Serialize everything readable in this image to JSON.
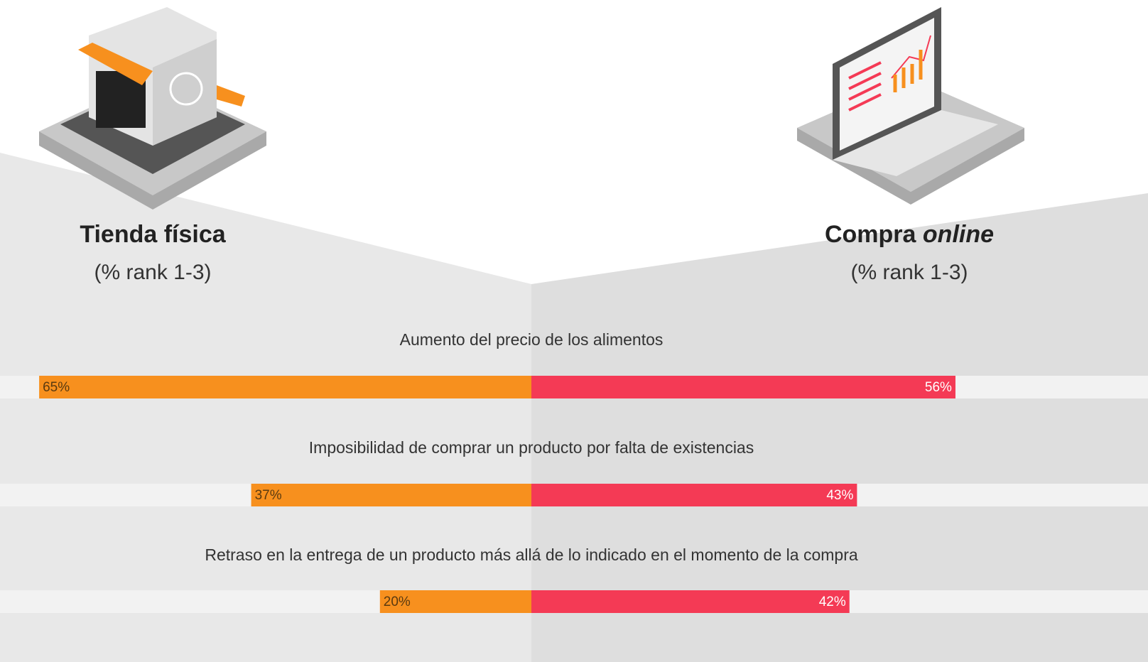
{
  "chart_data": {
    "type": "butterfly",
    "categories": [
      "Aumento del precio de los alimentos",
      "Imposibilidad de comprar un producto por falta de existencias",
      "Retraso en la entrega de un producto más allá de lo indicado en el momento de la compra"
    ],
    "series": [
      {
        "name": "Tienda física",
        "subtitle": "(% rank 1-3)",
        "color": "#f7901e",
        "values": [
          65,
          37,
          20
        ],
        "value_labels": [
          "65%",
          "37%",
          "20%"
        ]
      },
      {
        "name": "Compra",
        "name_emphasis": "online",
        "subtitle": "(% rank 1-3)",
        "color": "#f43a55",
        "values": [
          56,
          43,
          42
        ],
        "value_labels": [
          "56%",
          "43%",
          "42%"
        ]
      }
    ]
  }
}
